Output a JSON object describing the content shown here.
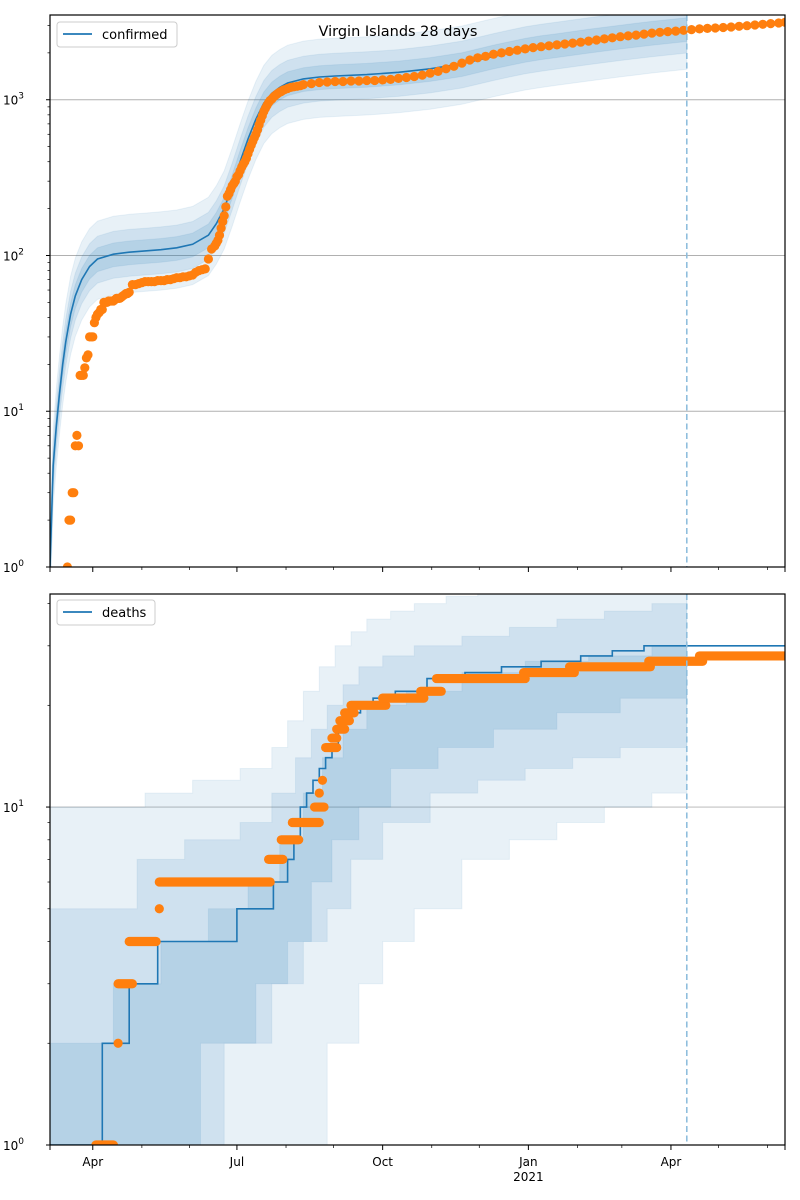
{
  "figure": {
    "title": "Virgin Islands 28 days"
  },
  "chart_data": [
    {
      "type": "line",
      "panel": "top",
      "title": "Virgin Islands 28 days",
      "legend": {
        "entries": [
          "confirmed"
        ],
        "placement": "upper-left"
      },
      "yscale": "log",
      "ylim": [
        1,
        3500
      ],
      "yticks": [
        {
          "value": 1,
          "base": "10",
          "exp": "0"
        },
        {
          "value": 10,
          "base": "10",
          "exp": "1"
        },
        {
          "value": 100,
          "base": "10",
          "exp": "2"
        },
        {
          "value": 1000,
          "base": "10",
          "exp": "3"
        }
      ],
      "grid": "y-major",
      "x_unit": "days since 2020-03-05",
      "xlim": [
        0,
        464
      ],
      "xticks": [
        {
          "day": 27,
          "label": "Apr",
          "sub": ""
        },
        {
          "day": 118,
          "label": "Jul",
          "sub": ""
        },
        {
          "day": 210,
          "label": "Oct",
          "sub": ""
        },
        {
          "day": 302,
          "label": "Jan",
          "sub": "2021"
        },
        {
          "day": 392,
          "label": "Apr",
          "sub": ""
        }
      ],
      "minor_xticks": [
        58,
        88,
        149,
        179,
        241,
        271,
        333,
        361,
        422,
        453
      ],
      "forecast_start_day": 402,
      "model": {
        "name": "confirmed",
        "days": [
          0,
          2,
          4,
          6,
          8,
          10,
          13,
          16,
          20,
          25,
          30,
          40,
          50,
          60,
          70,
          80,
          90,
          100,
          105,
          110,
          115,
          120,
          125,
          130,
          135,
          140,
          145,
          150,
          160,
          170,
          180,
          200,
          220,
          240,
          260,
          280,
          290,
          300,
          310,
          320,
          340,
          360,
          380,
          402
        ],
        "median": [
          1,
          4.5,
          8,
          13,
          20,
          28,
          42,
          55,
          70,
          85,
          95,
          102,
          105,
          107,
          109,
          112,
          118,
          135,
          160,
          200,
          280,
          400,
          560,
          750,
          950,
          1100,
          1200,
          1280,
          1360,
          1400,
          1420,
          1450,
          1500,
          1580,
          1700,
          1900,
          2000,
          2100,
          2180,
          2250,
          2400,
          2550,
          2700,
          2850
        ],
        "bands": [
          {
            "level": "outer",
            "lower_factor": 0.55,
            "upper_factor": 1.75
          },
          {
            "level": "middle",
            "lower_factor": 0.7,
            "upper_factor": 1.4
          },
          {
            "level": "inner",
            "lower_factor": 0.83,
            "upper_factor": 1.18
          }
        ]
      },
      "observed": {
        "name": "confirmed (observed)",
        "days": [
          11,
          12,
          13,
          14,
          15,
          16,
          17,
          18,
          19,
          20,
          21,
          22,
          23,
          24,
          25,
          26,
          27,
          28,
          29,
          30,
          31,
          32,
          33,
          34,
          35,
          36,
          37,
          38,
          39,
          40,
          41,
          42,
          43,
          44,
          45,
          46,
          47,
          48,
          49,
          50,
          52,
          54,
          56,
          58,
          60,
          62,
          64,
          66,
          68,
          70,
          72,
          74,
          76,
          78,
          80,
          82,
          84,
          86,
          88,
          90,
          92,
          94,
          96,
          98,
          100,
          102,
          104,
          105,
          106,
          107,
          108,
          109,
          110,
          111,
          112,
          113,
          114,
          115,
          116,
          117,
          118,
          119,
          120,
          121,
          122,
          123,
          124,
          125,
          126,
          127,
          128,
          129,
          130,
          131,
          132,
          133,
          134,
          135,
          136,
          137,
          138,
          139,
          140,
          141,
          142,
          143,
          144,
          145,
          146,
          147,
          148,
          150,
          152,
          154,
          156,
          158,
          160,
          165,
          170,
          175,
          180,
          185,
          190,
          195,
          200,
          205,
          210,
          215,
          220,
          225,
          230,
          235,
          240,
          245,
          250,
          255,
          260,
          265,
          270,
          275,
          280,
          285,
          290,
          295,
          300,
          305,
          310,
          315,
          320,
          325,
          330,
          335,
          340,
          345,
          350,
          355,
          360,
          365,
          370,
          375,
          380,
          385,
          390,
          395,
          400,
          405,
          410,
          415,
          420,
          425,
          430,
          435,
          440,
          445,
          450,
          455,
          460,
          464
        ],
        "values": [
          1,
          2,
          2,
          3,
          3,
          6,
          7,
          6,
          17,
          17,
          17,
          19,
          22,
          23,
          30,
          30,
          30,
          37,
          40,
          42,
          43,
          45,
          45,
          50,
          50,
          50,
          51,
          51,
          51,
          51,
          52,
          53,
          53,
          53,
          54,
          55,
          56,
          57,
          57,
          58,
          65,
          65,
          66,
          67,
          68,
          68,
          68,
          68,
          69,
          69,
          69,
          70,
          70,
          71,
          72,
          72,
          73,
          73,
          74,
          75,
          78,
          80,
          81,
          82,
          95,
          110,
          115,
          120,
          125,
          135,
          150,
          165,
          180,
          205,
          240,
          250,
          265,
          280,
          290,
          300,
          320,
          330,
          350,
          370,
          385,
          400,
          420,
          450,
          480,
          510,
          540,
          570,
          600,
          640,
          690,
          740,
          790,
          840,
          880,
          920,
          960,
          990,
          1010,
          1040,
          1060,
          1080,
          1100,
          1120,
          1130,
          1150,
          1160,
          1180,
          1200,
          1210,
          1220,
          1230,
          1250,
          1270,
          1290,
          1300,
          1310,
          1310,
          1320,
          1320,
          1330,
          1330,
          1340,
          1350,
          1370,
          1390,
          1410,
          1440,
          1480,
          1520,
          1580,
          1640,
          1720,
          1800,
          1860,
          1900,
          1960,
          2000,
          2040,
          2080,
          2120,
          2160,
          2190,
          2220,
          2250,
          2280,
          2310,
          2340,
          2380,
          2420,
          2460,
          2500,
          2540,
          2570,
          2600,
          2640,
          2680,
          2710,
          2740,
          2760,
          2790,
          2820,
          2850,
          2870,
          2890,
          2910,
          2930,
          2960,
          2990,
          3020,
          3050,
          3080,
          3110,
          3140,
          3170,
          3190
        ]
      }
    },
    {
      "type": "line",
      "panel": "bottom",
      "legend": {
        "entries": [
          "deaths"
        ],
        "placement": "upper-left"
      },
      "yscale": "log",
      "ylim": [
        1,
        42.7
      ],
      "yticks": [
        {
          "value": 1,
          "base": "10",
          "exp": "0"
        },
        {
          "value": 10,
          "base": "10",
          "exp": "1"
        }
      ],
      "minor_yticks": [
        2,
        3,
        4,
        5,
        6,
        7,
        8,
        9,
        20,
        30,
        40
      ],
      "grid": "y-major",
      "x_unit": "days since 2020-03-05",
      "xlim": [
        0,
        464
      ],
      "xticks": [
        {
          "day": 27,
          "label": "Apr",
          "sub": ""
        },
        {
          "day": 118,
          "label": "Jul",
          "sub": ""
        },
        {
          "day": 210,
          "label": "Oct",
          "sub": ""
        },
        {
          "day": 302,
          "label": "Jan",
          "sub": "2021"
        },
        {
          "day": 392,
          "label": "Apr",
          "sub": ""
        }
      ],
      "minor_xticks": [
        58,
        88,
        149,
        179,
        241,
        271,
        333,
        361,
        422,
        453
      ],
      "forecast_start_day": 402,
      "model": {
        "name": "deaths",
        "step_days": [
          0,
          33,
          50,
          68,
          118,
          141,
          150,
          154,
          158,
          162,
          166,
          170,
          174,
          178,
          182,
          186,
          190,
          196,
          204,
          218,
          238,
          262,
          285,
          310,
          335,
          355,
          375,
          402,
          464
        ],
        "step_values": [
          1,
          2,
          3,
          4,
          5,
          6,
          7,
          8,
          10,
          11,
          12,
          13,
          14,
          15,
          17,
          18,
          19,
          20,
          21,
          22,
          24,
          25,
          26,
          27,
          28,
          29,
          30,
          30,
          30
        ],
        "bands": [
          {
            "level": "outer",
            "lower_days": [
              0,
              100,
              145,
              175,
              195,
              210,
              230,
              260,
              290,
              320,
              350,
              380,
              402
            ],
            "lower": [
              0.5,
              0.5,
              1,
              2,
              3,
              4,
              5,
              7,
              8,
              9,
              10,
              11,
              12
            ],
            "upper_days": [
              0,
              30,
              60,
              90,
              120,
              140,
              150,
              160,
              170,
              180,
              190,
              200,
              215,
              230,
              250,
              270,
              290,
              310,
              330,
              350,
              370,
              390,
              402
            ],
            "upper": [
              10,
              10,
              11,
              12,
              13,
              15,
              18,
              22,
              26,
              30,
              33,
              36,
              38,
              40,
              42,
              44,
              45,
              46,
              47,
              48,
              49,
              50,
              52
            ]
          },
          {
            "level": "middle",
            "lower_days": [
              0,
              58,
              110,
              140,
              160,
              175,
              190,
              210,
              240,
              270,
              300,
              330,
              360,
              402
            ],
            "lower": [
              0.5,
              1,
              2,
              3,
              4,
              5,
              7,
              9,
              11,
              12,
              13,
              14,
              15,
              16
            ],
            "upper_days": [
              0,
              28,
              55,
              85,
              120,
              140,
              155,
              165,
              175,
              185,
              195,
              210,
              230,
              260,
              290,
              320,
              350,
              380,
              402
            ],
            "upper": [
              5,
              5,
              7,
              8,
              9,
              11,
              14,
              17,
              20,
              23,
              26,
              28,
              30,
              32,
              34,
              36,
              38,
              40,
              42
            ]
          },
          {
            "level": "inner",
            "lower_days": [
              0,
              58,
              95,
              130,
              150,
              165,
              178,
              195,
              215,
              245,
              280,
              320,
              360,
              402
            ],
            "lower": [
              0.5,
              1,
              2,
              3,
              4,
              6,
              8,
              10,
              13,
              15,
              17,
              19,
              21,
              22
            ],
            "upper_days": [
              0,
              15,
              40,
              70,
              100,
              125,
              145,
              160,
              172,
              185,
              200,
              225,
              260,
              300,
              340,
              380,
              402
            ],
            "upper": [
              2,
              2,
              3,
              4,
              5,
              6,
              8,
              11,
              14,
              17,
              20,
              22,
              25,
              27,
              28,
              30,
              32
            ]
          }
        ]
      },
      "observed": {
        "name": "deaths (observed)",
        "segments": [
          {
            "from": 29,
            "to": 40,
            "value": 1
          },
          {
            "from": 43,
            "to": 43,
            "value": 2
          },
          {
            "from": 43,
            "to": 52,
            "value": 3
          },
          {
            "from": 50,
            "to": 67,
            "value": 4
          },
          {
            "from": 69,
            "to": 69,
            "value": 5
          },
          {
            "from": 69,
            "to": 139,
            "value": 6
          },
          {
            "from": 138,
            "to": 147,
            "value": 7
          },
          {
            "from": 146,
            "to": 157,
            "value": 8
          },
          {
            "from": 153,
            "to": 170,
            "value": 9
          },
          {
            "from": 167,
            "to": 173,
            "value": 10
          },
          {
            "from": 170,
            "to": 170,
            "value": 11
          },
          {
            "from": 172,
            "to": 172,
            "value": 12
          },
          {
            "from": 174,
            "to": 181,
            "value": 15
          },
          {
            "from": 178,
            "to": 181,
            "value": 16
          },
          {
            "from": 181,
            "to": 186,
            "value": 17
          },
          {
            "from": 183,
            "to": 189,
            "value": 18
          },
          {
            "from": 186,
            "to": 192,
            "value": 19
          },
          {
            "from": 190,
            "to": 212,
            "value": 20
          },
          {
            "from": 210,
            "to": 236,
            "value": 21
          },
          {
            "from": 234,
            "to": 247,
            "value": 22
          },
          {
            "from": 244,
            "to": 300,
            "value": 24
          },
          {
            "from": 299,
            "to": 331,
            "value": 25
          },
          {
            "from": 328,
            "to": 379,
            "value": 26
          },
          {
            "from": 378,
            "to": 412,
            "value": 27
          },
          {
            "from": 410,
            "to": 464,
            "value": 28
          }
        ]
      }
    }
  ],
  "colors": {
    "model_line": "#1f77b4",
    "observed": "#ff7f0e",
    "band_fill": "#1f77b4",
    "grid": "#b0b0b0",
    "forecast_line": "#8fbedd"
  }
}
